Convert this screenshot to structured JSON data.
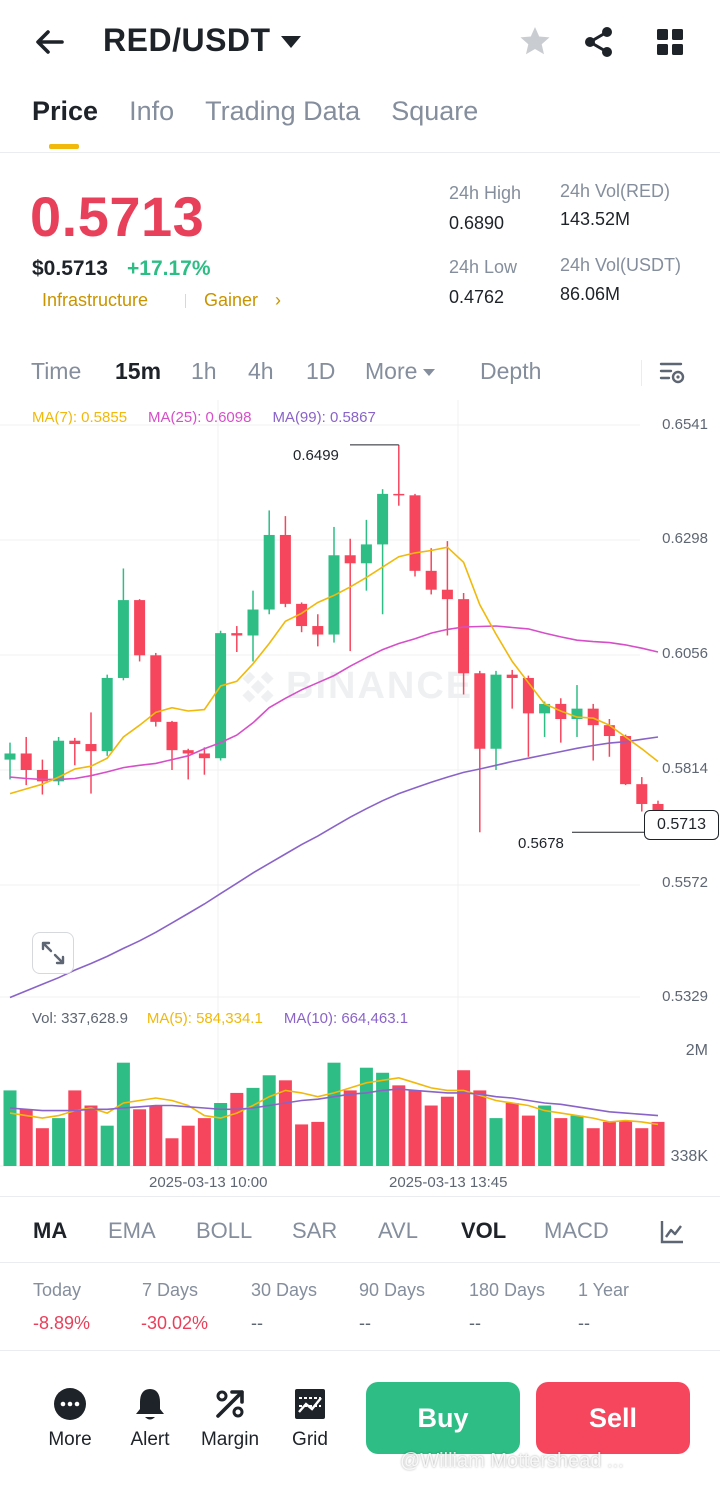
{
  "header": {
    "pair": "RED/USDT",
    "icons": [
      "back-arrow-icon",
      "star-icon",
      "share-icon",
      "grid-icon"
    ]
  },
  "tabs": [
    {
      "label": "Price",
      "active": true
    },
    {
      "label": "Info",
      "active": false
    },
    {
      "label": "Trading Data",
      "active": false
    },
    {
      "label": "Square",
      "active": false
    }
  ],
  "ticker": {
    "last_price": "0.5713",
    "usd_price": "$0.5713",
    "change": "+17.17%",
    "tag1": "Infrastructure",
    "tag2": "Gainer",
    "high_label": "24h High",
    "high_value": "0.6890",
    "low_label": "24h Low",
    "low_value": "0.4762",
    "vol_red_label": "24h Vol(RED)",
    "vol_red_value": "143.52M",
    "vol_usdt_label": "24h Vol(USDT)",
    "vol_usdt_value": "86.06M",
    "colors": {
      "down": "#e8405a",
      "up": "#2ebd85",
      "tag": "#c99400"
    }
  },
  "intervals": {
    "items": [
      "Time",
      "15m",
      "1h",
      "4h",
      "1D",
      "More",
      "Depth"
    ],
    "selected": "15m"
  },
  "ma_legend": {
    "ma7": "MA(7): 0.5855",
    "ma25": "MA(25): 0.6098",
    "ma99": "MA(99): 0.5867"
  },
  "vol_legend": {
    "vol": "Vol: 337,628.9",
    "ma5": "MA(5): 584,334.1",
    "ma10": "MA(10): 664,463.1"
  },
  "chart_data": {
    "type": "candlestick",
    "price_axis": [
      "0.6541",
      "0.6298",
      "0.6056",
      "0.5814",
      "0.5572",
      "0.5329"
    ],
    "current_price_label": "0.5713",
    "high_marker": "0.6499",
    "low_marker": "0.5678",
    "watermark": "BINANCE",
    "volume_axis": [
      "2M",
      "338K"
    ],
    "time_labels": [
      "2025-03-13 10:00",
      "2025-03-13 13:45"
    ],
    "candles": [
      {
        "o": 0.5832,
        "h": 0.5868,
        "l": 0.579,
        "c": 0.5845
      },
      {
        "o": 0.5845,
        "h": 0.588,
        "l": 0.5778,
        "c": 0.581
      },
      {
        "o": 0.581,
        "h": 0.5832,
        "l": 0.5758,
        "c": 0.5786
      },
      {
        "o": 0.5786,
        "h": 0.588,
        "l": 0.5778,
        "c": 0.5872
      },
      {
        "o": 0.5872,
        "h": 0.5878,
        "l": 0.582,
        "c": 0.5865
      },
      {
        "o": 0.5865,
        "h": 0.5932,
        "l": 0.576,
        "c": 0.585
      },
      {
        "o": 0.585,
        "h": 0.6012,
        "l": 0.584,
        "c": 0.6005
      },
      {
        "o": 0.6005,
        "h": 0.6237,
        "l": 0.6,
        "c": 0.617
      },
      {
        "o": 0.617,
        "h": 0.6172,
        "l": 0.604,
        "c": 0.6053
      },
      {
        "o": 0.6053,
        "h": 0.6058,
        "l": 0.5902,
        "c": 0.5912
      },
      {
        "o": 0.5912,
        "h": 0.5914,
        "l": 0.581,
        "c": 0.5852
      },
      {
        "o": 0.5852,
        "h": 0.5855,
        "l": 0.579,
        "c": 0.5845
      },
      {
        "o": 0.5845,
        "h": 0.5858,
        "l": 0.58,
        "c": 0.5835
      },
      {
        "o": 0.5835,
        "h": 0.6105,
        "l": 0.583,
        "c": 0.61
      },
      {
        "o": 0.61,
        "h": 0.6115,
        "l": 0.606,
        "c": 0.6095
      },
      {
        "o": 0.6095,
        "h": 0.619,
        "l": 0.604,
        "c": 0.615
      },
      {
        "o": 0.615,
        "h": 0.636,
        "l": 0.614,
        "c": 0.6308
      },
      {
        "o": 0.6308,
        "h": 0.6348,
        "l": 0.6155,
        "c": 0.6162
      },
      {
        "o": 0.6162,
        "h": 0.6165,
        "l": 0.6102,
        "c": 0.6115
      },
      {
        "o": 0.6115,
        "h": 0.614,
        "l": 0.6072,
        "c": 0.6097
      },
      {
        "o": 0.6097,
        "h": 0.6325,
        "l": 0.608,
        "c": 0.6265
      },
      {
        "o": 0.6265,
        "h": 0.63,
        "l": 0.6062,
        "c": 0.6248
      },
      {
        "o": 0.6248,
        "h": 0.634,
        "l": 0.619,
        "c": 0.6288
      },
      {
        "o": 0.6288,
        "h": 0.6405,
        "l": 0.614,
        "c": 0.6395
      },
      {
        "o": 0.6395,
        "h": 0.6499,
        "l": 0.637,
        "c": 0.6392
      },
      {
        "o": 0.6392,
        "h": 0.6395,
        "l": 0.622,
        "c": 0.6232
      },
      {
        "o": 0.6232,
        "h": 0.628,
        "l": 0.6182,
        "c": 0.6192
      },
      {
        "o": 0.6192,
        "h": 0.6295,
        "l": 0.6095,
        "c": 0.6172
      },
      {
        "o": 0.6172,
        "h": 0.6185,
        "l": 0.597,
        "c": 0.6015
      },
      {
        "o": 0.6015,
        "h": 0.602,
        "l": 0.5678,
        "c": 0.5855
      },
      {
        "o": 0.5855,
        "h": 0.602,
        "l": 0.581,
        "c": 0.6012
      },
      {
        "o": 0.6012,
        "h": 0.6022,
        "l": 0.594,
        "c": 0.6005
      },
      {
        "o": 0.6005,
        "h": 0.601,
        "l": 0.5838,
        "c": 0.593
      },
      {
        "o": 0.593,
        "h": 0.5955,
        "l": 0.588,
        "c": 0.595
      },
      {
        "o": 0.595,
        "h": 0.5962,
        "l": 0.5868,
        "c": 0.5918
      },
      {
        "o": 0.5918,
        "h": 0.599,
        "l": 0.588,
        "c": 0.594
      },
      {
        "o": 0.594,
        "h": 0.595,
        "l": 0.583,
        "c": 0.5905
      },
      {
        "o": 0.5905,
        "h": 0.5918,
        "l": 0.5838,
        "c": 0.5882
      },
      {
        "o": 0.5882,
        "h": 0.5885,
        "l": 0.5778,
        "c": 0.578
      },
      {
        "o": 0.578,
        "h": 0.5795,
        "l": 0.5722,
        "c": 0.5738
      },
      {
        "o": 0.5738,
        "h": 0.5745,
        "l": 0.5678,
        "c": 0.5713
      }
    ],
    "ma7": [
      0.576,
      0.577,
      0.578,
      0.5795,
      0.5812,
      0.5818,
      0.5835,
      0.588,
      0.5905,
      0.5932,
      0.5942,
      0.5935,
      0.5938,
      0.5988,
      0.5998,
      0.6035,
      0.6078,
      0.6125,
      0.6142,
      0.6165,
      0.618,
      0.6198,
      0.6218,
      0.624,
      0.6262,
      0.627,
      0.6275,
      0.6282,
      0.625,
      0.616,
      0.6098,
      0.604,
      0.5995,
      0.595,
      0.5935,
      0.5922,
      0.592,
      0.5905,
      0.588,
      0.5855,
      0.5828
    ],
    "ma25": [
      0.5795,
      0.5792,
      0.579,
      0.579,
      0.5792,
      0.5798,
      0.5806,
      0.5815,
      0.582,
      0.5824,
      0.5832,
      0.584,
      0.5855,
      0.5868,
      0.5884,
      0.591,
      0.5942,
      0.5962,
      0.598,
      0.5995,
      0.601,
      0.603,
      0.6048,
      0.6065,
      0.6078,
      0.6088,
      0.61,
      0.6108,
      0.6113,
      0.6114,
      0.6115,
      0.6112,
      0.6109,
      0.61,
      0.6092,
      0.6085,
      0.6082,
      0.608,
      0.6075,
      0.6068,
      0.606
    ],
    "ma99": [
      0.5328,
      0.5342,
      0.5356,
      0.537,
      0.5386,
      0.54,
      0.5415,
      0.5432,
      0.5448,
      0.5466,
      0.5486,
      0.5506,
      0.5526,
      0.5548,
      0.557,
      0.5592,
      0.5612,
      0.5632,
      0.5652,
      0.567,
      0.569,
      0.571,
      0.5728,
      0.5745,
      0.576,
      0.5772,
      0.5784,
      0.5795,
      0.5805,
      0.5812,
      0.582,
      0.5828,
      0.5835,
      0.5842,
      0.5849,
      0.5856,
      0.5862,
      0.5867,
      0.587,
      0.5875,
      0.588
    ],
    "volumes": [
      0.6,
      0.45,
      0.3,
      0.38,
      0.6,
      0.48,
      0.32,
      0.82,
      0.45,
      0.48,
      0.22,
      0.32,
      0.38,
      0.5,
      0.58,
      0.62,
      0.72,
      0.68,
      0.33,
      0.35,
      0.82,
      0.6,
      0.78,
      0.74,
      0.64,
      0.6,
      0.48,
      0.55,
      0.76,
      0.6,
      0.38,
      0.5,
      0.4,
      0.48,
      0.38,
      0.4,
      0.3,
      0.35,
      0.36,
      0.3,
      0.35
    ],
    "vol_ma5": [
      0.42,
      0.4,
      0.38,
      0.4,
      0.44,
      0.46,
      0.42,
      0.5,
      0.52,
      0.54,
      0.52,
      0.48,
      0.4,
      0.38,
      0.42,
      0.48,
      0.55,
      0.6,
      0.58,
      0.55,
      0.58,
      0.62,
      0.66,
      0.68,
      0.7,
      0.66,
      0.62,
      0.6,
      0.6,
      0.56,
      0.52,
      0.5,
      0.48,
      0.44,
      0.42,
      0.4,
      0.38,
      0.35,
      0.36,
      0.35,
      0.33
    ],
    "vol_ma10": [
      0.46,
      0.45,
      0.44,
      0.44,
      0.44,
      0.45,
      0.45,
      0.46,
      0.47,
      0.48,
      0.48,
      0.47,
      0.46,
      0.45,
      0.45,
      0.46,
      0.48,
      0.5,
      0.52,
      0.53,
      0.55,
      0.57,
      0.58,
      0.6,
      0.61,
      0.6,
      0.59,
      0.58,
      0.58,
      0.57,
      0.55,
      0.54,
      0.52,
      0.5,
      0.49,
      0.47,
      0.45,
      0.43,
      0.42,
      0.41,
      0.4
    ]
  },
  "indicators": {
    "items": [
      "MA",
      "EMA",
      "BOLL",
      "SAR",
      "AVL",
      "VOL",
      "MACD"
    ],
    "active": [
      "MA",
      "VOL"
    ]
  },
  "performance": [
    {
      "label": "Today",
      "value": "-8.89%"
    },
    {
      "label": "7 Days",
      "value": "-30.02%"
    },
    {
      "label": "30 Days",
      "value": "--"
    },
    {
      "label": "90 Days",
      "value": "--"
    },
    {
      "label": "180 Days",
      "value": "--"
    },
    {
      "label": "1 Year",
      "value": "--"
    }
  ],
  "bottom_bar": {
    "more": "More",
    "alert": "Alert",
    "margin": "Margin",
    "grid": "Grid",
    "buy": "Buy",
    "sell": "Sell"
  },
  "credit": "@William Mottershead ..."
}
